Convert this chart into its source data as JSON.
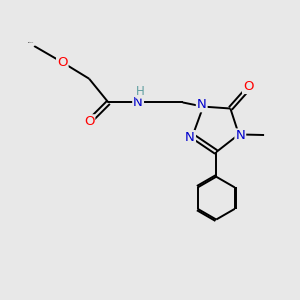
{
  "bg_color": "#e8e8e8",
  "atom_colors": {
    "C": "#000000",
    "H": "#5f9ea0",
    "N": "#0000cd",
    "O": "#ff0000",
    "bond": "#000000"
  },
  "figsize": [
    3.0,
    3.0
  ],
  "dpi": 100
}
